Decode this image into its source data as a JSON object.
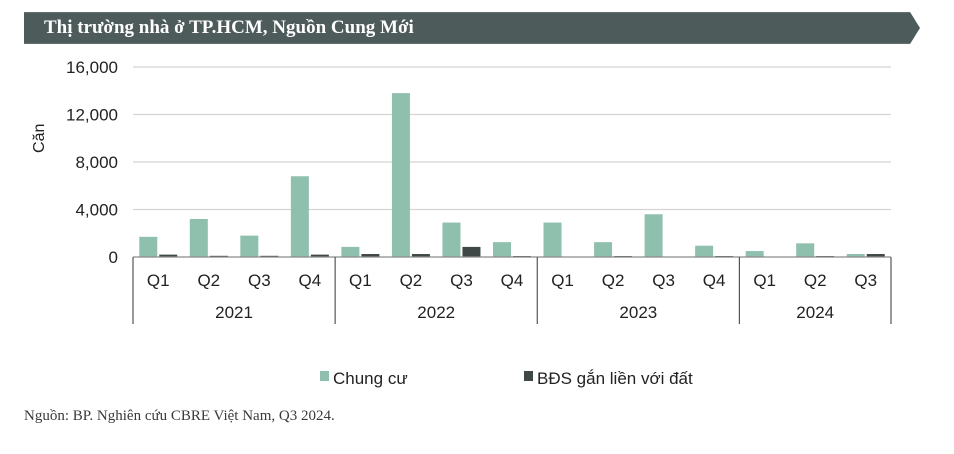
{
  "header": {
    "title": "Thị trường nhà ở TP.HCM, Nguồn Cung Mới"
  },
  "source": "Nguồn: BP. Nghiên cứu CBRE Việt Nam, Q3 2024.",
  "colors": {
    "banner": "#4d5b5b",
    "chung_cu": "#8fbfad",
    "bds": "#3f4747",
    "grid": "#d4d4d4",
    "axis": "#555555"
  },
  "chart_data": {
    "type": "bar",
    "ylabel": "Căn",
    "ylim": [
      0,
      16000
    ],
    "yticks": [
      0,
      4000,
      8000,
      12000,
      16000
    ],
    "ytick_labels": [
      "0",
      "4,000",
      "8,000",
      "12,000",
      "16,000"
    ],
    "grid": true,
    "legend_position": "bottom",
    "categories": [
      "Q1",
      "Q2",
      "Q3",
      "Q4",
      "Q1",
      "Q2",
      "Q3",
      "Q4",
      "Q1",
      "Q2",
      "Q3",
      "Q4",
      "Q1",
      "Q2",
      "Q3"
    ],
    "groups": [
      {
        "label": "2021",
        "count": 4
      },
      {
        "label": "2022",
        "count": 4
      },
      {
        "label": "2023",
        "count": 4
      },
      {
        "label": "2024",
        "count": 3
      }
    ],
    "series": [
      {
        "name": "Chung cư",
        "color": "#8fbfad",
        "values": [
          1700,
          3200,
          1800,
          6800,
          850,
          13800,
          2900,
          1250,
          2900,
          1250,
          3600,
          950,
          500,
          1150,
          250
        ]
      },
      {
        "name": "BĐS gắn liền với đất",
        "color": "#3f4747",
        "values": [
          200,
          100,
          100,
          200,
          250,
          250,
          850,
          80,
          0,
          80,
          0,
          80,
          0,
          80,
          250
        ]
      }
    ]
  }
}
